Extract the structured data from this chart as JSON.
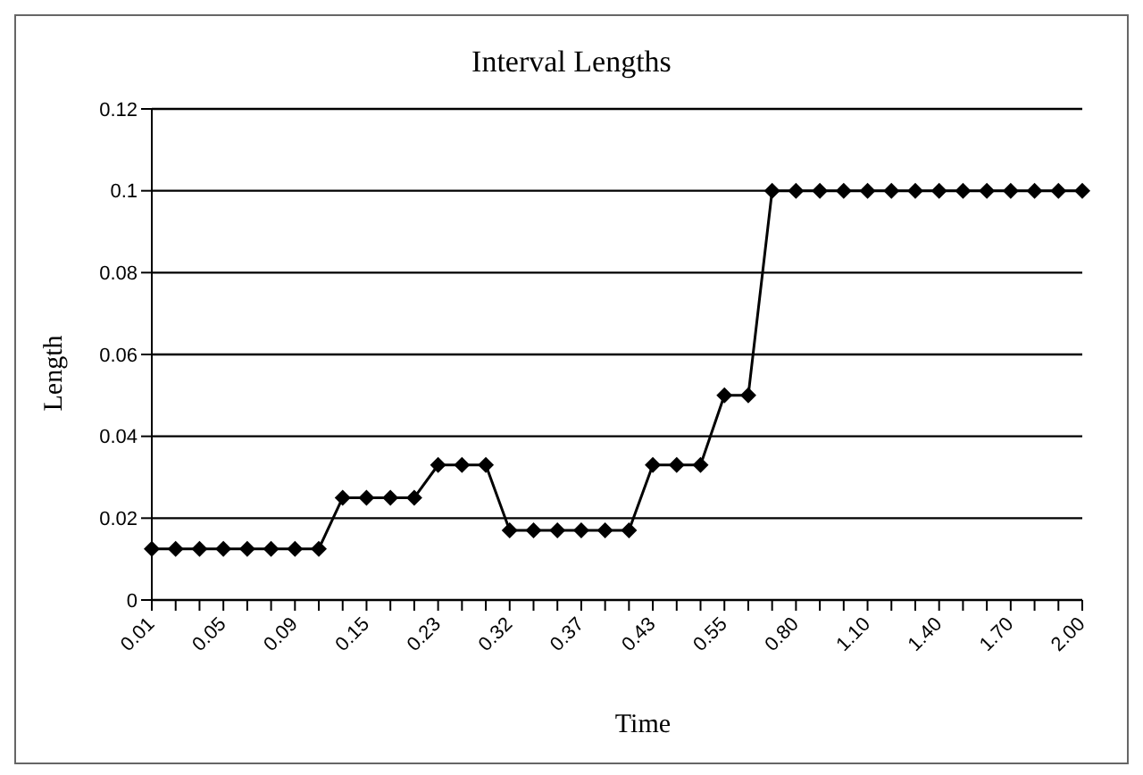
{
  "chart_data": {
    "type": "line",
    "title": "Interval Lengths",
    "xlabel": "Time",
    "ylabel": "Length",
    "categories": [
      "0.01",
      null,
      null,
      "0.05",
      null,
      null,
      "0.09",
      null,
      null,
      "0.15",
      null,
      null,
      "0.23",
      null,
      null,
      "0.32",
      null,
      null,
      "0.37",
      null,
      null,
      "0.43",
      null,
      null,
      "0.55",
      null,
      null,
      "0.80",
      null,
      null,
      "1.10",
      null,
      null,
      "1.40",
      null,
      null,
      "1.70",
      null,
      null,
      "2.00"
    ],
    "series": [
      {
        "color": "#000000",
        "values": [
          0.0125,
          0.0125,
          0.0125,
          0.0125,
          0.0125,
          0.0125,
          0.0125,
          0.0125,
          0.025,
          0.025,
          0.025,
          0.025,
          0.033,
          0.033,
          0.033,
          0.017,
          0.017,
          0.017,
          0.017,
          0.017,
          0.017,
          0.033,
          0.033,
          0.033,
          0.05,
          0.05,
          0.1,
          0.1,
          0.1,
          0.1,
          0.1,
          0.1,
          0.1,
          0.1,
          0.1,
          0.1,
          0.1,
          0.1,
          0.1,
          0.1
        ]
      }
    ],
    "ylim": [
      0,
      0.12
    ],
    "yticks": [
      0,
      0.02,
      0.04,
      0.06,
      0.08,
      0.1,
      0.12
    ],
    "grid": "y",
    "marker": "diamond",
    "line_style": "solid"
  }
}
